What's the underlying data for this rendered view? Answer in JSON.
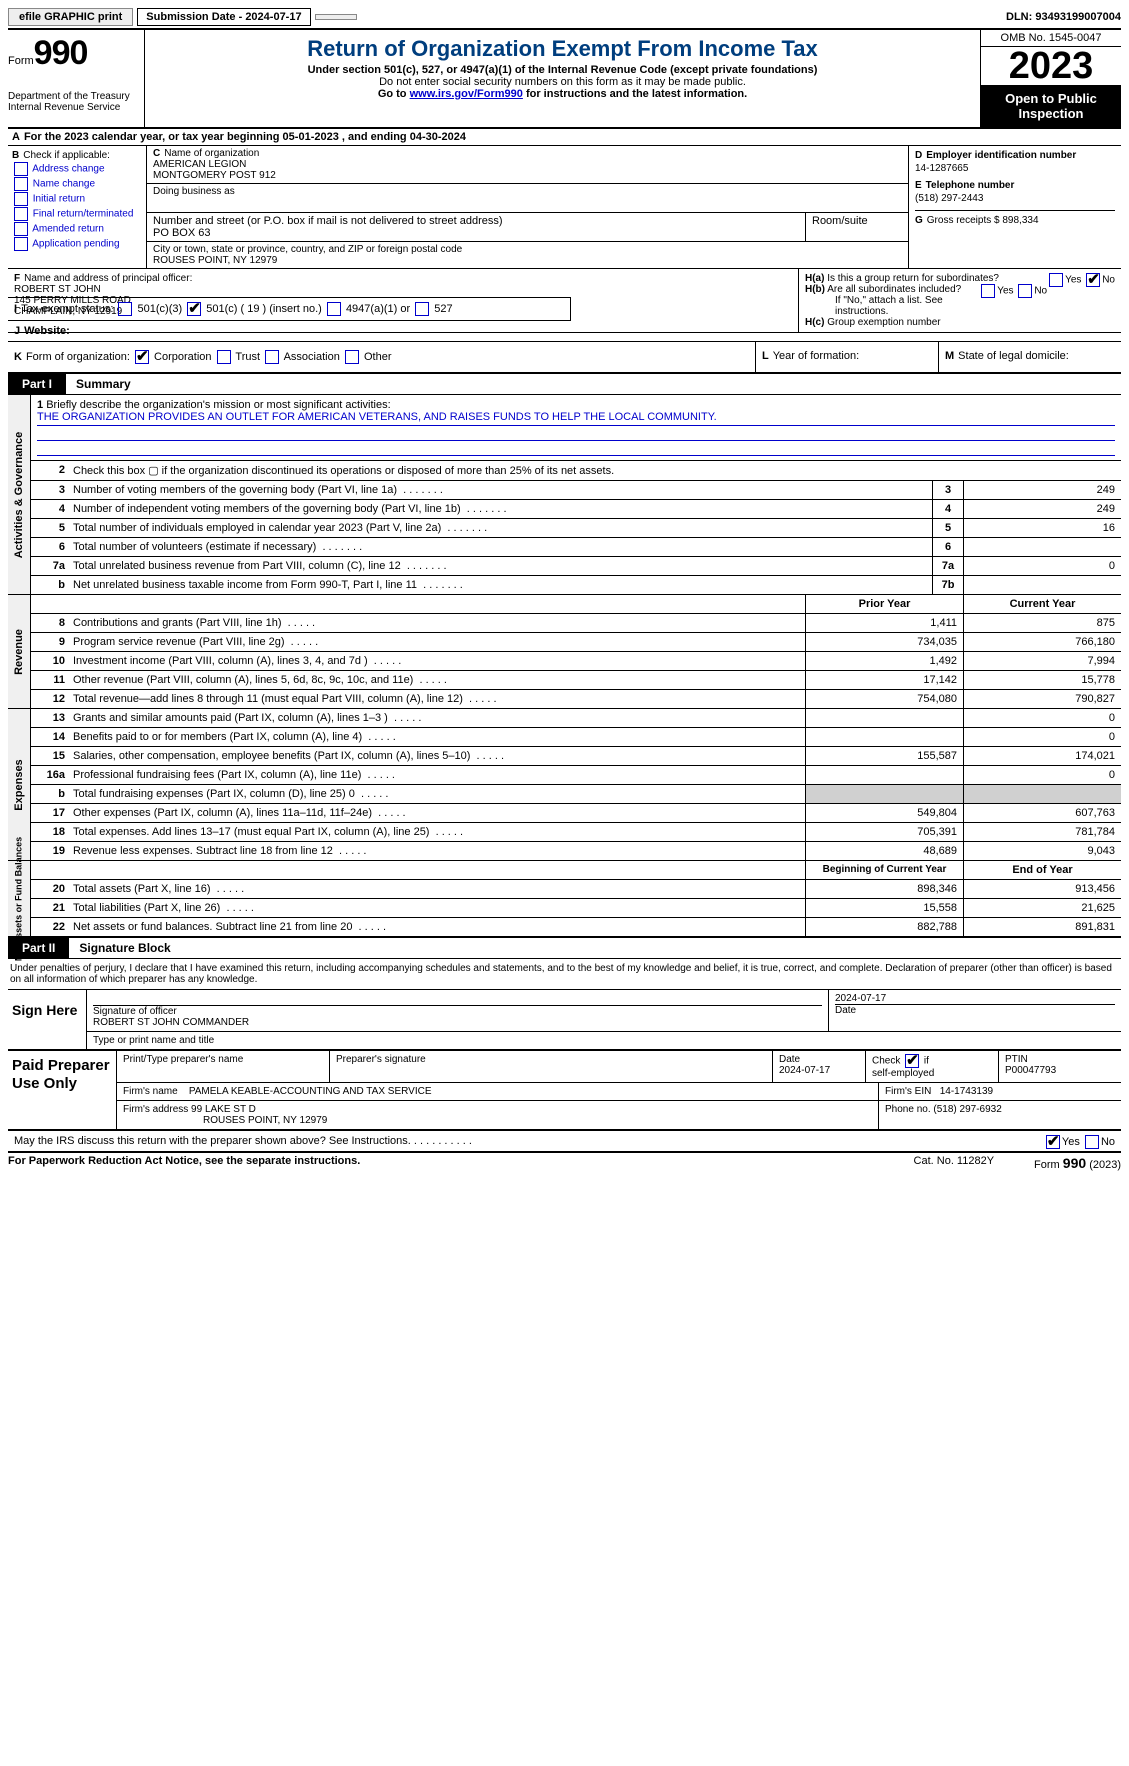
{
  "topbar": {
    "efile": "efile GRAPHIC print",
    "submission_label": "Submission Date - 2024-07-17",
    "dln": "DLN: 93493199007004"
  },
  "header": {
    "form_word": "Form",
    "form_num": "990",
    "dept": "Department of the Treasury\nInternal Revenue Service",
    "title": "Return of Organization Exempt From Income Tax",
    "sub1": "Under section 501(c), 527, or 4947(a)(1) of the Internal Revenue Code (except private foundations)",
    "sub2": "Do not enter social security numbers on this form as it may be made public.",
    "sub3_pre": "Go to ",
    "sub3_link": "www.irs.gov/Form990",
    "sub3_post": " for instructions and the latest information.",
    "omb": "OMB No. 1545-0047",
    "year": "2023",
    "open": "Open to Public Inspection"
  },
  "line_a": "For the 2023 calendar year, or tax year beginning 05-01-2023    , and ending 04-30-2024",
  "box_b": {
    "label": "Check if applicable:",
    "items": [
      "Address change",
      "Name change",
      "Initial return",
      "Final return/terminated",
      "Amended return",
      "Application pending"
    ]
  },
  "box_c": {
    "name_label": "Name of organization",
    "name1": "AMERICAN LEGION",
    "name2": "MONTGOMERY POST 912",
    "dba_label": "Doing business as",
    "street_label": "Number and street (or P.O. box if mail is not delivered to street address)",
    "room_label": "Room/suite",
    "street": "PO BOX 63",
    "city_label": "City or town, state or province, country, and ZIP or foreign postal code",
    "city": "ROUSES POINT, NY  12979"
  },
  "box_d": {
    "label": "Employer identification number",
    "val": "14-1287665"
  },
  "box_e": {
    "label": "Telephone number",
    "val": "(518) 297-2443"
  },
  "box_g": {
    "label": "Gross receipts $",
    "val": "898,334"
  },
  "box_f": {
    "label": "Name and address of principal officer:",
    "name": "ROBERT ST JOHN",
    "addr1": "145 PERRY MILLS ROAD",
    "addr2": "CHAMPLAIN, NY  12919"
  },
  "box_h": {
    "a": "Is this a group return for subordinates?",
    "b": "Are all subordinates included?",
    "note": "If \"No,\" attach a list. See instructions.",
    "c": "Group exemption number"
  },
  "row_i": {
    "label": "Tax-exempt status:",
    "c3": "501(c)(3)",
    "c": "501(c) ( 19 ) (insert no.)",
    "a1": "4947(a)(1) or",
    "s527": "527"
  },
  "row_j": {
    "label": "Website:"
  },
  "row_k": {
    "label": "Form of organization:",
    "opts": [
      "Corporation",
      "Trust",
      "Association",
      "Other"
    ]
  },
  "row_l": "Year of formation:",
  "row_m": "State of legal domicile:",
  "part1": {
    "tab": "Part I",
    "title": "Summary"
  },
  "mission": {
    "q1": "Briefly describe the organization's mission or most significant activities:",
    "text": "THE ORGANIZATION PROVIDES AN OUTLET FOR AMERICAN VETERANS, AND RAISES FUNDS TO HELP THE LOCAL COMMUNITY."
  },
  "gov_rows": [
    {
      "n": "2",
      "t": "Check this box  ▢  if the organization discontinued its operations or disposed of more than 25% of its net assets.",
      "box": "",
      "v": ""
    },
    {
      "n": "3",
      "t": "Number of voting members of the governing body (Part VI, line 1a)",
      "box": "3",
      "v": "249"
    },
    {
      "n": "4",
      "t": "Number of independent voting members of the governing body (Part VI, line 1b)",
      "box": "4",
      "v": "249"
    },
    {
      "n": "5",
      "t": "Total number of individuals employed in calendar year 2023 (Part V, line 2a)",
      "box": "5",
      "v": "16"
    },
    {
      "n": "6",
      "t": "Total number of volunteers (estimate if necessary)",
      "box": "6",
      "v": ""
    },
    {
      "n": "7a",
      "t": "Total unrelated business revenue from Part VIII, column (C), line 12",
      "box": "7a",
      "v": "0"
    },
    {
      "n": "b",
      "t": "Net unrelated business taxable income from Form 990-T, Part I, line 11",
      "box": "7b",
      "v": ""
    }
  ],
  "rev_hdr": {
    "prior": "Prior Year",
    "curr": "Current Year"
  },
  "rev_rows": [
    {
      "n": "8",
      "t": "Contributions and grants (Part VIII, line 1h)",
      "p": "1,411",
      "c": "875"
    },
    {
      "n": "9",
      "t": "Program service revenue (Part VIII, line 2g)",
      "p": "734,035",
      "c": "766,180"
    },
    {
      "n": "10",
      "t": "Investment income (Part VIII, column (A), lines 3, 4, and 7d )",
      "p": "1,492",
      "c": "7,994"
    },
    {
      "n": "11",
      "t": "Other revenue (Part VIII, column (A), lines 5, 6d, 8c, 9c, 10c, and 11e)",
      "p": "17,142",
      "c": "15,778"
    },
    {
      "n": "12",
      "t": "Total revenue—add lines 8 through 11 (must equal Part VIII, column (A), line 12)",
      "p": "754,080",
      "c": "790,827"
    }
  ],
  "exp_rows": [
    {
      "n": "13",
      "t": "Grants and similar amounts paid (Part IX, column (A), lines 1–3 )",
      "p": "",
      "c": "0"
    },
    {
      "n": "14",
      "t": "Benefits paid to or for members (Part IX, column (A), line 4)",
      "p": "",
      "c": "0"
    },
    {
      "n": "15",
      "t": "Salaries, other compensation, employee benefits (Part IX, column (A), lines 5–10)",
      "p": "155,587",
      "c": "174,021"
    },
    {
      "n": "16a",
      "t": "Professional fundraising fees (Part IX, column (A), line 11e)",
      "p": "",
      "c": "0"
    },
    {
      "n": "b",
      "t": "Total fundraising expenses (Part IX, column (D), line 25) 0",
      "p": "shade",
      "c": "shade"
    },
    {
      "n": "17",
      "t": "Other expenses (Part IX, column (A), lines 11a–11d, 11f–24e)",
      "p": "549,804",
      "c": "607,763"
    },
    {
      "n": "18",
      "t": "Total expenses. Add lines 13–17 (must equal Part IX, column (A), line 25)",
      "p": "705,391",
      "c": "781,784"
    },
    {
      "n": "19",
      "t": "Revenue less expenses. Subtract line 18 from line 12",
      "p": "48,689",
      "c": "9,043"
    }
  ],
  "na_hdr": {
    "prior": "Beginning of Current Year",
    "curr": "End of Year"
  },
  "na_rows": [
    {
      "n": "20",
      "t": "Total assets (Part X, line 16)",
      "p": "898,346",
      "c": "913,456"
    },
    {
      "n": "21",
      "t": "Total liabilities (Part X, line 26)",
      "p": "15,558",
      "c": "21,625"
    },
    {
      "n": "22",
      "t": "Net assets or fund balances. Subtract line 21 from line 20",
      "p": "882,788",
      "c": "891,831"
    }
  ],
  "vtabs": {
    "gov": "Activities & Governance",
    "rev": "Revenue",
    "exp": "Expenses",
    "na": "Net Assets or\nFund Balances"
  },
  "part2": {
    "tab": "Part II",
    "title": "Signature Block"
  },
  "sig_intro": "Under penalties of perjury, I declare that I have examined this return, including accompanying schedules and statements, and to the best of my knowledge and belief, it is true, correct, and complete. Declaration of preparer (other than officer) is based on all information of which preparer has any knowledge.",
  "sign": {
    "left": "Sign Here",
    "sig_label": "Signature of officer",
    "name": "ROBERT ST JOHN  COMMANDER",
    "name_label": "Type or print name and title",
    "date_label": "Date",
    "date": "2024-07-17"
  },
  "prep": {
    "left": "Paid Preparer Use Only",
    "h_name": "Print/Type preparer's name",
    "h_sig": "Preparer's signature",
    "h_date": "Date",
    "date": "2024-07-17",
    "self": "Check ▣ if self-employed",
    "ptin_label": "PTIN",
    "ptin": "P00047793",
    "firm_name_label": "Firm's name",
    "firm_name": "PAMELA KEABLE-ACCOUNTING AND TAX SERVICE",
    "firm_ein_label": "Firm's EIN",
    "firm_ein": "14-1743139",
    "firm_addr_label": "Firm's address",
    "firm_addr1": "99 LAKE ST D",
    "firm_addr2": "ROUSES POINT, NY  12979",
    "phone_label": "Phone no.",
    "phone": "(518) 297-6932"
  },
  "discuss": "May the IRS discuss this return with the preparer shown above? See Instructions.",
  "footer": {
    "pw": "For Paperwork Reduction Act Notice, see the separate instructions.",
    "cat": "Cat. No. 11282Y",
    "form": "Form 990 (2023)"
  }
}
